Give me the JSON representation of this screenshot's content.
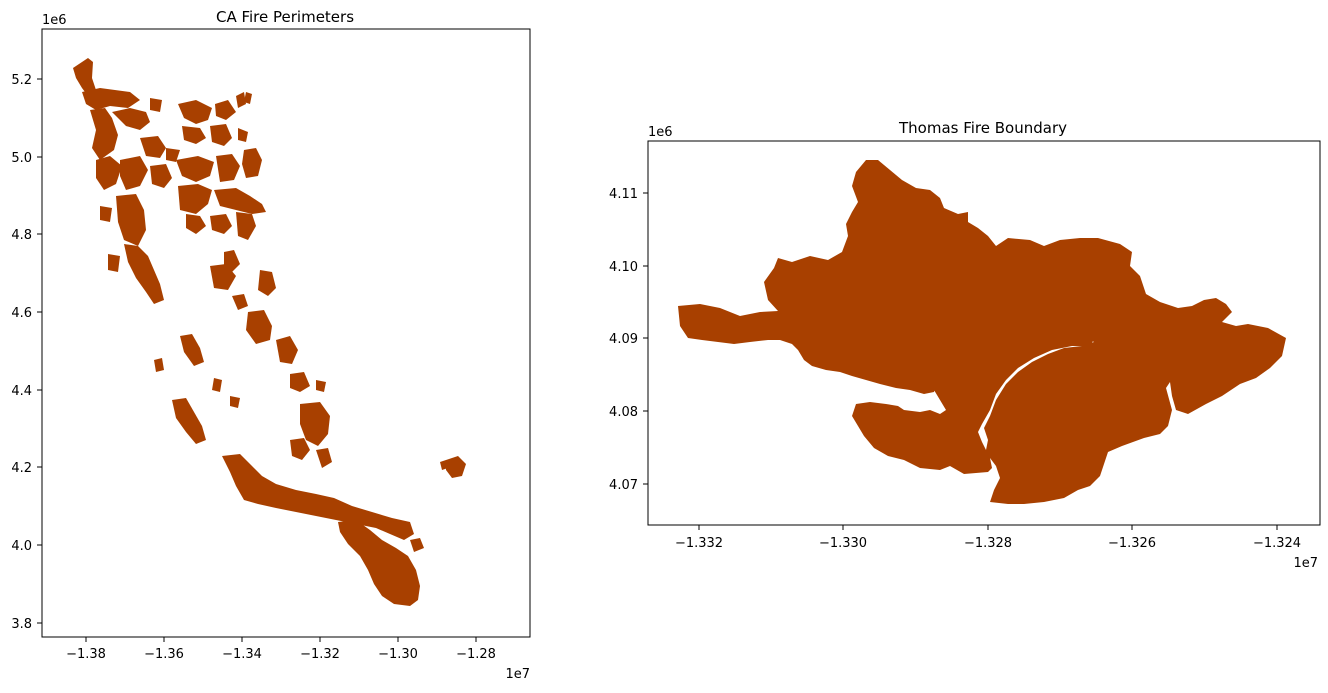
{
  "chart_data": [
    {
      "type": "map",
      "title": "CA Fire Perimeters",
      "fill_color": "#a84000",
      "x_ticks": [
        -13800000,
        -13600000,
        -13400000,
        -13200000,
        -13000000,
        -12800000
      ],
      "x_tick_labels": [
        "−1.38",
        "−1.36",
        "−1.34",
        "−1.32",
        "−1.30",
        "−1.28"
      ],
      "x_offset_label": "1e7",
      "y_ticks": [
        3800000,
        4000000,
        4200000,
        4400000,
        4600000,
        4800000,
        5000000,
        5200000
      ],
      "y_tick_labels": [
        "3.8",
        "4.0",
        "4.2",
        "4.4",
        "4.6",
        "4.8",
        "5.0",
        "5.2"
      ],
      "y_offset_label": "1e6",
      "xlim": [
        -13893000,
        -13635000
      ],
      "ylim": [
        3765000,
        5330000
      ],
      "grid": false,
      "shape": "California fire perimeter polygons"
    },
    {
      "type": "map",
      "title": "Thomas Fire Boundary",
      "fill_color": "#a84000",
      "x_ticks": [
        -13320000,
        -13300000,
        -13280000,
        -13260000,
        -13240000
      ],
      "x_tick_labels": [
        "−1.332",
        "−1.330",
        "−1.328",
        "−1.326",
        "−1.324"
      ],
      "x_offset_label": "1e7",
      "y_ticks": [
        4070000,
        4080000,
        4090000,
        4100000,
        4110000
      ],
      "y_tick_labels": [
        "4.07",
        "4.08",
        "4.09",
        "4.10",
        "4.11"
      ],
      "y_offset_label": "1e6",
      "xlim": [
        -13327500,
        -13235000
      ],
      "ylim": [
        4064000,
        4117300
      ],
      "grid": false,
      "shape": "Thomas Fire boundary polygon"
    }
  ]
}
